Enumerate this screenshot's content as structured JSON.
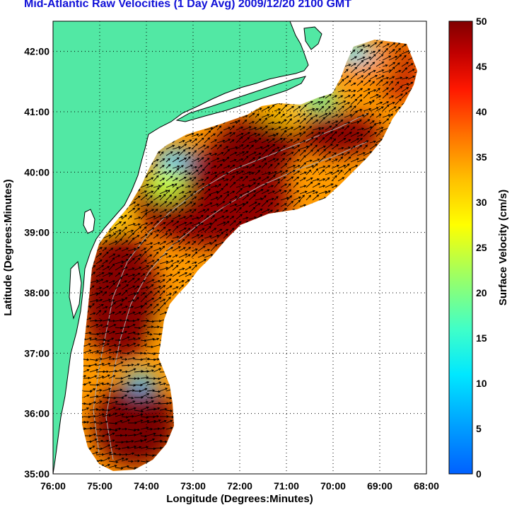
{
  "title": "Mid-Atlantic Raw Velocities (1 Day Avg) 2009/12/20 2100 GMT",
  "axes": {
    "xlabel": "Longitude (Degrees:Minutes)",
    "ylabel": "Latitude (Degrees:Minutes)",
    "x_ticks": [
      "76:00",
      "75:00",
      "74:00",
      "73:00",
      "72:00",
      "71:00",
      "70:00",
      "69:00",
      "68:00"
    ],
    "y_ticks": [
      "42:00",
      "41:00",
      "40:00",
      "39:00",
      "38:00",
      "37:00",
      "36:00",
      "35:00"
    ],
    "lon_range": [
      -76,
      -68
    ],
    "lat_range": [
      35,
      42.5
    ]
  },
  "colorbar": {
    "label": "Surface Velocity (cm/s)",
    "ticks": [
      "50",
      "45",
      "40",
      "35",
      "30",
      "25",
      "20",
      "15",
      "10",
      "5",
      "0"
    ],
    "range": [
      0,
      50
    ],
    "colormap": "jet"
  },
  "colors": {
    "land": "#52e8a4",
    "title": "#1010d8",
    "coastline": "#000000",
    "bathymetry": "#a8a8a8"
  }
}
